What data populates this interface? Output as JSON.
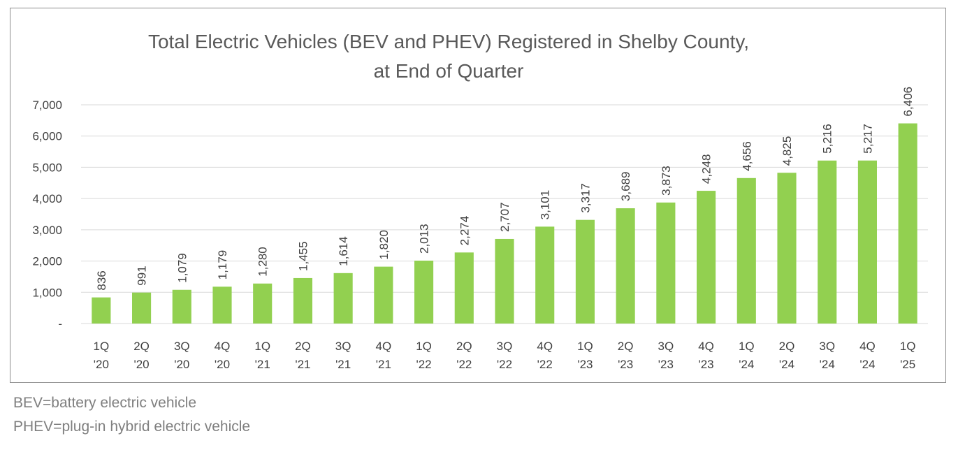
{
  "chart_data": {
    "type": "bar",
    "title": "Total Electric Vehicles (BEV and PHEV) Registered in Shelby County,",
    "subtitle": "at End of Quarter",
    "categories": [
      [
        "1Q",
        "'20"
      ],
      [
        "2Q",
        "'20"
      ],
      [
        "3Q",
        "'20"
      ],
      [
        "4Q",
        "'20"
      ],
      [
        "1Q",
        "'21"
      ],
      [
        "2Q",
        "'21"
      ],
      [
        "3Q",
        "'21"
      ],
      [
        "4Q",
        "'21"
      ],
      [
        "1Q",
        "'22"
      ],
      [
        "2Q",
        "'22"
      ],
      [
        "3Q",
        "'22"
      ],
      [
        "4Q",
        "'22"
      ],
      [
        "1Q",
        "'23"
      ],
      [
        "2Q",
        "'23"
      ],
      [
        "3Q",
        "'23"
      ],
      [
        "4Q",
        "'23"
      ],
      [
        "1Q",
        "'24"
      ],
      [
        "2Q",
        "'24"
      ],
      [
        "3Q",
        "'24"
      ],
      [
        "4Q",
        "'24"
      ],
      [
        "1Q",
        "'25"
      ]
    ],
    "values": [
      836,
      991,
      1079,
      1179,
      1280,
      1455,
      1614,
      1820,
      2013,
      2274,
      2707,
      3101,
      3317,
      3689,
      3873,
      4248,
      4656,
      4825,
      5216,
      5217,
      6406
    ],
    "data_labels": [
      "836",
      "991",
      "1,079",
      "1,179",
      "1,280",
      "1,455",
      "1,614",
      "1,820",
      "2,013",
      "2,274",
      "2,707",
      "3,101",
      "3,317",
      "3,689",
      "3,873",
      "4,248",
      "4,656",
      "4,825",
      "5,216",
      "5,217",
      "6,406"
    ],
    "yticks": [
      0,
      1000,
      2000,
      3000,
      4000,
      5000,
      6000,
      7000
    ],
    "ytick_labels": [
      "-",
      "1,000",
      "2,000",
      "3,000",
      "4,000",
      "5,000",
      "6,000",
      "7,000"
    ],
    "ylim": [
      0,
      7000
    ],
    "grid": true,
    "legend": "none",
    "bar_color": "#92d050",
    "grid_color": "#d9d9d9",
    "xlabel": "",
    "ylabel": ""
  },
  "footnotes": {
    "bev": "BEV=battery electric vehicle",
    "phev": "PHEV=plug-in hybrid electric vehicle"
  }
}
